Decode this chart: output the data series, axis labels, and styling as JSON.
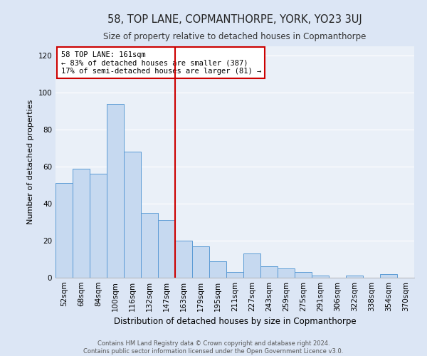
{
  "title": "58, TOP LANE, COPMANTHORPE, YORK, YO23 3UJ",
  "subtitle": "Size of property relative to detached houses in Copmanthorpe",
  "xlabel": "Distribution of detached houses by size in Copmanthorpe",
  "ylabel": "Number of detached properties",
  "categories": [
    "52sqm",
    "68sqm",
    "84sqm",
    "100sqm",
    "116sqm",
    "132sqm",
    "147sqm",
    "163sqm",
    "179sqm",
    "195sqm",
    "211sqm",
    "227sqm",
    "243sqm",
    "259sqm",
    "275sqm",
    "291sqm",
    "306sqm",
    "322sqm",
    "338sqm",
    "354sqm",
    "370sqm"
  ],
  "values": [
    51,
    59,
    56,
    94,
    68,
    35,
    31,
    20,
    17,
    9,
    3,
    13,
    6,
    5,
    3,
    1,
    0,
    1,
    0,
    2,
    0
  ],
  "bar_color": "#c6d9f0",
  "bar_edge_color": "#5b9bd5",
  "vline_color": "#cc0000",
  "vline_index": 7,
  "annotation_title": "58 TOP LANE: 161sqm",
  "annotation_line1": "← 83% of detached houses are smaller (387)",
  "annotation_line2": "17% of semi-detached houses are larger (81) →",
  "annotation_box_edge_color": "#cc0000",
  "ylim": [
    0,
    125
  ],
  "yticks": [
    0,
    20,
    40,
    60,
    80,
    100,
    120
  ],
  "footer_line1": "Contains HM Land Registry data © Crown copyright and database right 2024.",
  "footer_line2": "Contains public sector information licensed under the Open Government Licence v3.0.",
  "bg_color": "#dce6f5",
  "plot_bg_color": "#eaf0f8",
  "grid_color": "#ffffff",
  "title_fontsize": 10.5,
  "subtitle_fontsize": 8.5,
  "xlabel_fontsize": 8.5,
  "ylabel_fontsize": 8,
  "tick_fontsize": 7.5,
  "footer_fontsize": 6,
  "annot_fontsize": 7.5
}
